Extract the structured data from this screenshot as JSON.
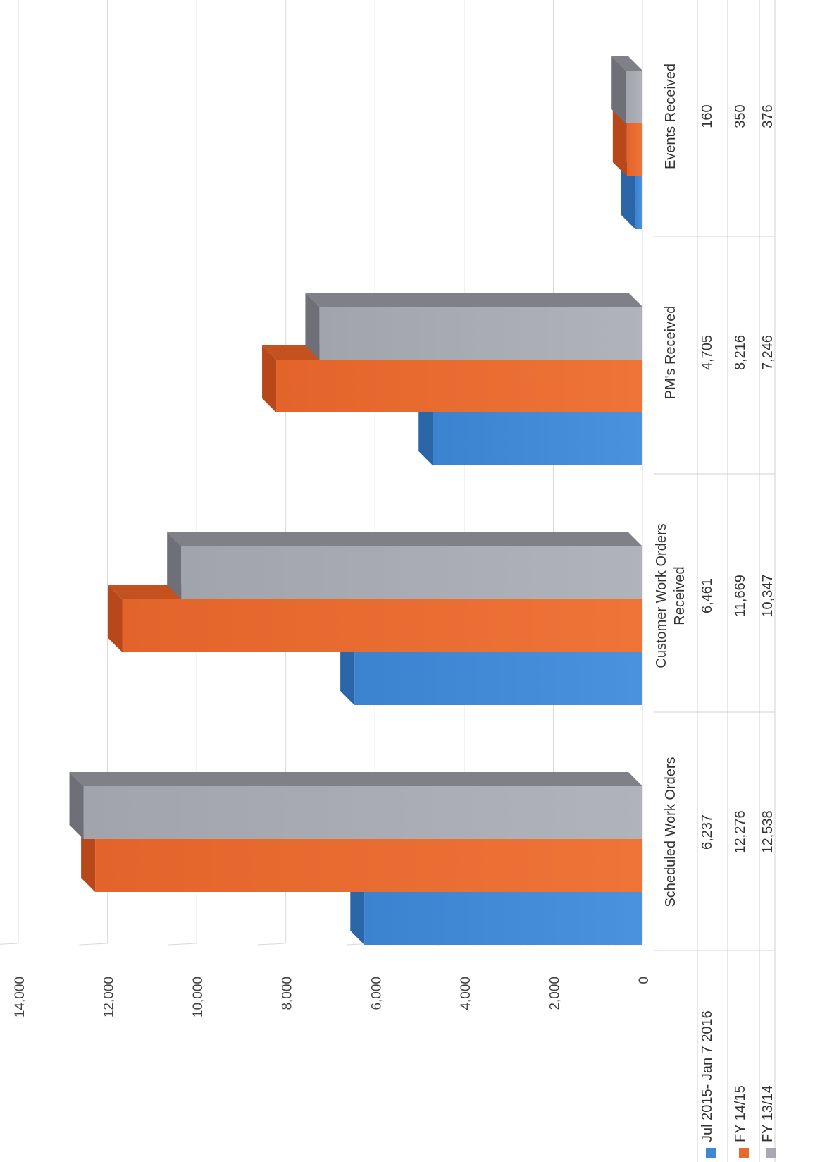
{
  "chart_data": {
    "type": "bar",
    "title": "",
    "xlabel": "",
    "ylabel": "",
    "ylim": [
      0,
      14000
    ],
    "yticks": [
      "0",
      "2,000",
      "4,000",
      "6,000",
      "8,000",
      "10,000",
      "12,000",
      "14,000"
    ],
    "grid": true,
    "three_d": true,
    "legend_position": "data-table",
    "categories": [
      "Scheduled Work Orders",
      "Customer Work Orders Received",
      "PM's Received",
      "Events Received"
    ],
    "category_lines": [
      [
        "Scheduled Work Orders"
      ],
      [
        "Customer Work Orders",
        "Received"
      ],
      [
        "PM's Received"
      ],
      [
        "Events Received"
      ]
    ],
    "series": [
      {
        "name": "Jul 2015- Jan 7 2016",
        "color": "#3f87d3",
        "values": [
          6237,
          6461,
          4705,
          160
        ],
        "labels": [
          "6,237",
          "6,461",
          "4,705",
          "160"
        ]
      },
      {
        "name": "FY 14/15",
        "color": "#e6692e",
        "values": [
          12276,
          11669,
          8216,
          350
        ],
        "labels": [
          "12,276",
          "11,669",
          "8,216",
          "350"
        ]
      },
      {
        "name": "FY 13/14",
        "color": "#a7a9b0",
        "values": [
          12538,
          10347,
          7246,
          376
        ],
        "labels": [
          "12,538",
          "10,347",
          "7,246",
          "376"
        ]
      }
    ]
  }
}
